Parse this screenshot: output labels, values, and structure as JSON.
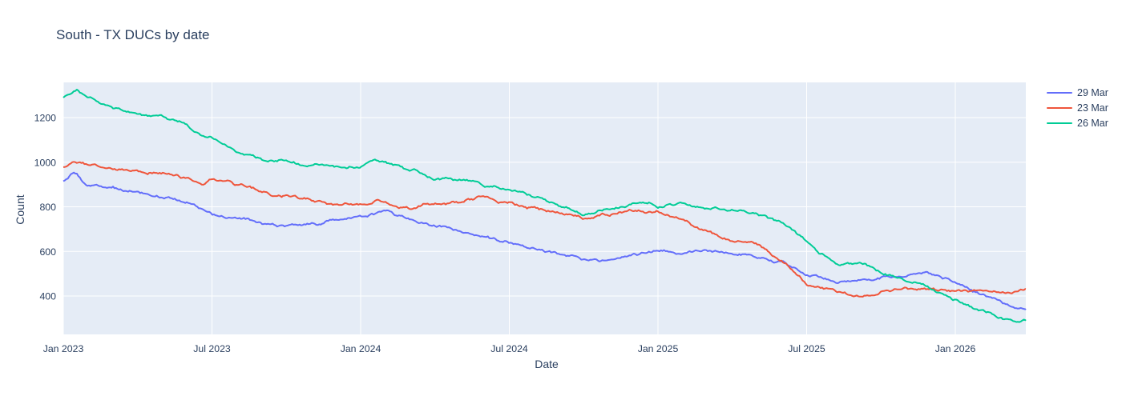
{
  "chart_data": {
    "type": "line",
    "title": "South - TX DUCs by date",
    "xlabel": "Date",
    "ylabel": "Count",
    "x_ticks": [
      {
        "label": "Jan 2023",
        "month_index": 0
      },
      {
        "label": "Jul 2023",
        "month_index": 6
      },
      {
        "label": "Jan 2024",
        "month_index": 12
      },
      {
        "label": "Jul 2024",
        "month_index": 18
      },
      {
        "label": "Jan 2025",
        "month_index": 24
      },
      {
        "label": "Jul 2025",
        "month_index": 30
      },
      {
        "label": "Jan 2026",
        "month_index": 36
      }
    ],
    "y_ticks": [
      400,
      600,
      800,
      1000,
      1200
    ],
    "x_range": [
      "2023-01-01",
      "2026-03-28"
    ],
    "ylim": [
      232,
      1358
    ],
    "grid": true,
    "legend_position": "outside-top-right",
    "noise_amplitude": 9,
    "plot_bg_color": "#e5ecf6",
    "grid_color": "#ffffff",
    "text_color": "#2a3f5f",
    "series": [
      {
        "name": "29 Mar",
        "color": "#636efa",
        "points": [
          [
            "2023-01-01",
            915
          ],
          [
            "2023-01-15",
            950
          ],
          [
            "2023-02-01",
            895
          ],
          [
            "2023-03-01",
            880
          ],
          [
            "2023-04-01",
            855
          ],
          [
            "2023-05-01",
            830
          ],
          [
            "2023-06-01",
            818
          ],
          [
            "2023-07-01",
            775
          ],
          [
            "2023-08-01",
            755
          ],
          [
            "2023-09-01",
            740
          ],
          [
            "2023-10-01",
            728
          ],
          [
            "2023-11-01",
            730
          ],
          [
            "2023-12-01",
            748
          ],
          [
            "2024-01-01",
            765
          ],
          [
            "2024-02-01",
            775
          ],
          [
            "2024-03-01",
            740
          ],
          [
            "2024-04-01",
            715
          ],
          [
            "2024-05-01",
            695
          ],
          [
            "2024-06-01",
            665
          ],
          [
            "2024-07-01",
            640
          ],
          [
            "2024-08-01",
            610
          ],
          [
            "2024-09-01",
            585
          ],
          [
            "2024-10-01",
            560
          ],
          [
            "2024-11-01",
            555
          ],
          [
            "2024-12-01",
            580
          ],
          [
            "2025-01-01",
            600
          ],
          [
            "2025-02-01",
            585
          ],
          [
            "2025-03-01",
            595
          ],
          [
            "2025-04-01",
            585
          ],
          [
            "2025-05-01",
            570
          ],
          [
            "2025-06-01",
            545
          ],
          [
            "2025-07-01",
            500
          ],
          [
            "2025-08-01",
            480
          ],
          [
            "2025-09-01",
            460
          ],
          [
            "2025-10-01",
            485
          ],
          [
            "2025-11-01",
            495
          ],
          [
            "2025-12-01",
            490
          ],
          [
            "2026-01-01",
            458
          ],
          [
            "2026-02-01",
            400
          ],
          [
            "2026-03-01",
            355
          ],
          [
            "2026-03-28",
            330
          ]
        ]
      },
      {
        "name": "23 Mar",
        "color": "#ef553b",
        "points": [
          [
            "2023-01-01",
            978
          ],
          [
            "2023-01-15",
            1005
          ],
          [
            "2023-02-01",
            990
          ],
          [
            "2023-03-01",
            975
          ],
          [
            "2023-04-01",
            962
          ],
          [
            "2023-05-01",
            950
          ],
          [
            "2023-06-01",
            920
          ],
          [
            "2023-06-20",
            885
          ],
          [
            "2023-07-01",
            925
          ],
          [
            "2023-08-01",
            895
          ],
          [
            "2023-09-01",
            860
          ],
          [
            "2023-10-01",
            840
          ],
          [
            "2023-11-01",
            820
          ],
          [
            "2023-12-01",
            798
          ],
          [
            "2024-01-01",
            810
          ],
          [
            "2024-02-01",
            830
          ],
          [
            "2024-03-01",
            790
          ],
          [
            "2024-04-01",
            815
          ],
          [
            "2024-05-01",
            815
          ],
          [
            "2024-06-01",
            825
          ],
          [
            "2024-07-01",
            815
          ],
          [
            "2024-08-01",
            785
          ],
          [
            "2024-09-01",
            750
          ],
          [
            "2024-10-01",
            735
          ],
          [
            "2024-11-01",
            760
          ],
          [
            "2024-12-01",
            765
          ],
          [
            "2025-01-01",
            770
          ],
          [
            "2025-02-01",
            735
          ],
          [
            "2025-03-01",
            680
          ],
          [
            "2025-04-01",
            645
          ],
          [
            "2025-05-01",
            630
          ],
          [
            "2025-06-01",
            560
          ],
          [
            "2025-07-01",
            460
          ],
          [
            "2025-08-01",
            425
          ],
          [
            "2025-09-01",
            405
          ],
          [
            "2025-10-01",
            430
          ],
          [
            "2025-11-01",
            425
          ],
          [
            "2025-12-01",
            430
          ],
          [
            "2026-01-01",
            420
          ],
          [
            "2026-02-01",
            415
          ],
          [
            "2026-03-01",
            400
          ],
          [
            "2026-03-28",
            410
          ]
        ]
      },
      {
        "name": "26 Mar",
        "color": "#00cc96",
        "points": [
          [
            "2023-01-01",
            1290
          ],
          [
            "2023-01-18",
            1318
          ],
          [
            "2023-02-01",
            1280
          ],
          [
            "2023-03-01",
            1245
          ],
          [
            "2023-04-01",
            1220
          ],
          [
            "2023-05-01",
            1195
          ],
          [
            "2023-06-01",
            1170
          ],
          [
            "2023-07-01",
            1120
          ],
          [
            "2023-08-01",
            1045
          ],
          [
            "2023-09-01",
            1020
          ],
          [
            "2023-10-01",
            1020
          ],
          [
            "2023-11-01",
            1005
          ],
          [
            "2023-12-01",
            995
          ],
          [
            "2024-01-01",
            990
          ],
          [
            "2024-01-20",
            1022
          ],
          [
            "2024-02-01",
            1015
          ],
          [
            "2024-03-01",
            970
          ],
          [
            "2024-04-01",
            935
          ],
          [
            "2024-05-01",
            930
          ],
          [
            "2024-06-01",
            895
          ],
          [
            "2024-07-01",
            895
          ],
          [
            "2024-08-01",
            860
          ],
          [
            "2024-09-01",
            815
          ],
          [
            "2024-10-01",
            785
          ],
          [
            "2024-11-01",
            800
          ],
          [
            "2024-12-01",
            820
          ],
          [
            "2025-01-01",
            810
          ],
          [
            "2025-02-01",
            820
          ],
          [
            "2025-03-01",
            790
          ],
          [
            "2025-04-01",
            785
          ],
          [
            "2025-05-01",
            765
          ],
          [
            "2025-06-01",
            720
          ],
          [
            "2025-07-01",
            640
          ],
          [
            "2025-08-01",
            560
          ],
          [
            "2025-09-01",
            520
          ],
          [
            "2025-10-01",
            490
          ],
          [
            "2025-11-01",
            465
          ],
          [
            "2025-12-01",
            435
          ],
          [
            "2026-01-01",
            390
          ],
          [
            "2026-02-01",
            340
          ],
          [
            "2026-03-01",
            305
          ],
          [
            "2026-03-28",
            290
          ]
        ]
      }
    ]
  }
}
